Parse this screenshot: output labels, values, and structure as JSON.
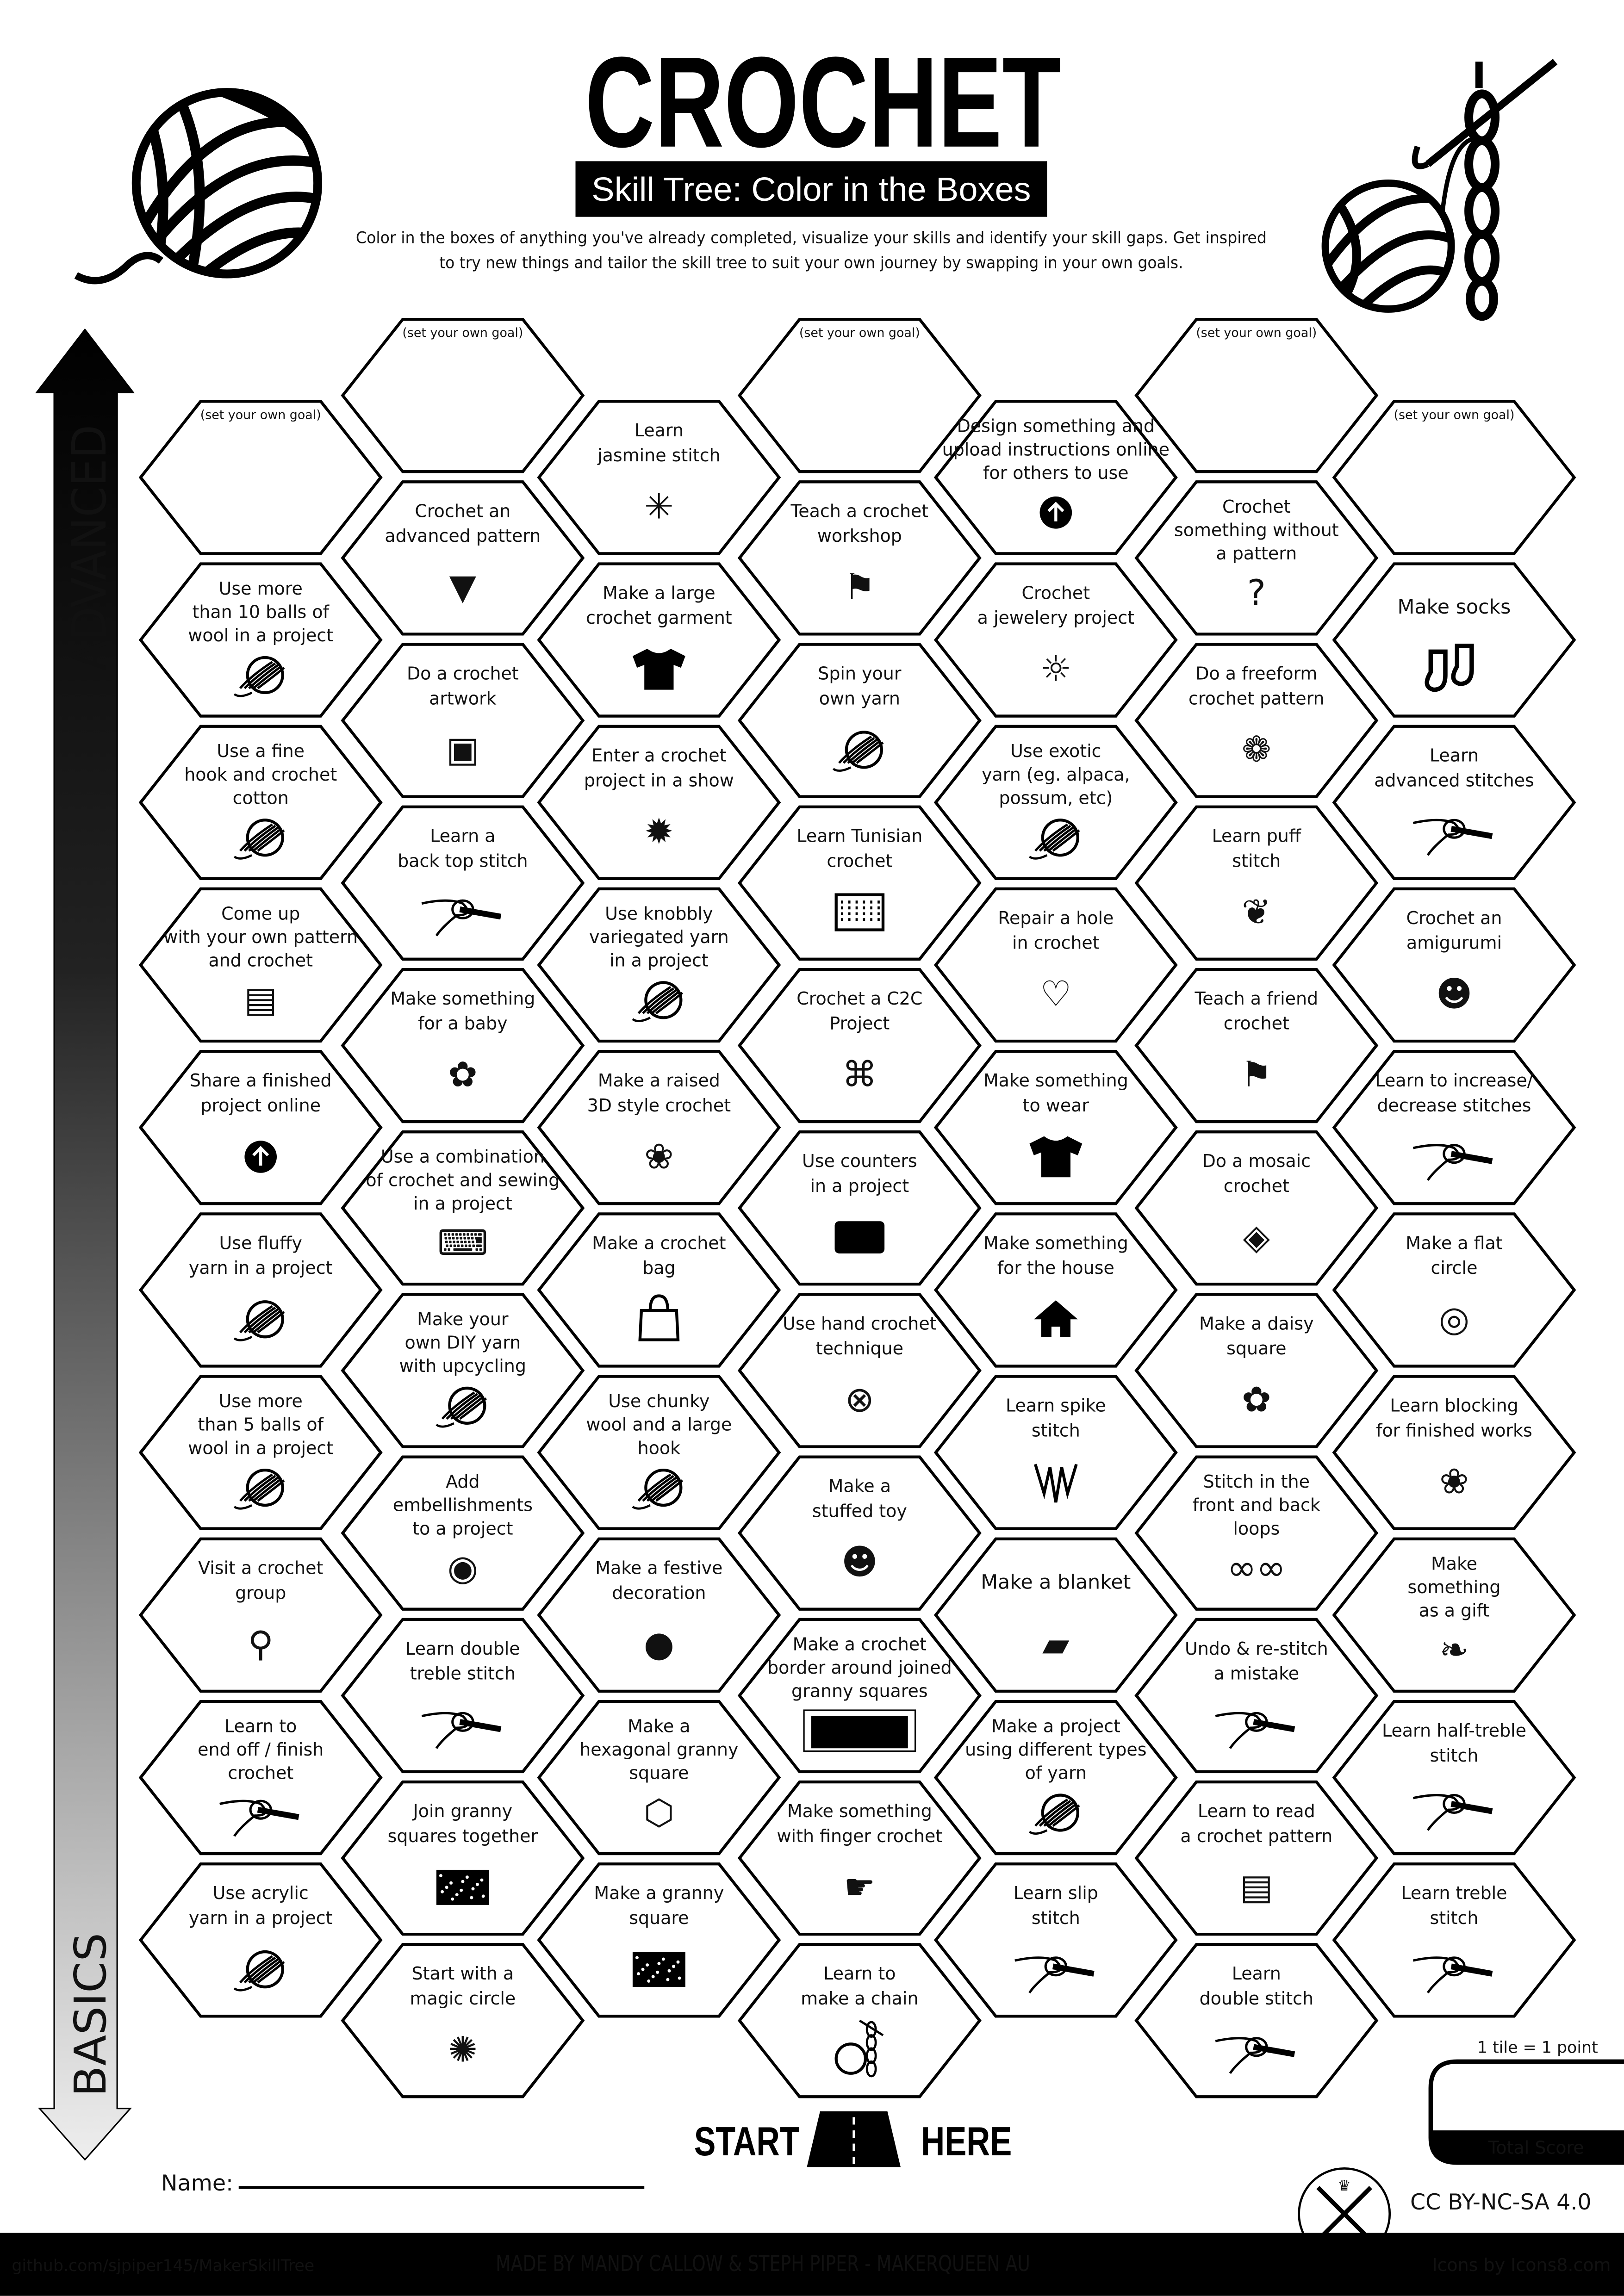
{
  "header": {
    "title": "CROCHET",
    "subtitle": "Skill Tree: Color in the Boxes",
    "intro_line1": "Color in the boxes of anything you've already completed, visualize your skills and identify your skill gaps.  Get inspired",
    "intro_line2": "to try new things and tailor the skill tree to suit your own journey by swapping in your own goals."
  },
  "axis": {
    "top_label": "ADVANCED",
    "bottom_label": "BASICS"
  },
  "columns": [
    {
      "tiles": [
        {
          "goal": true,
          "label": "(set your own goal)"
        },
        {
          "lines": [
            "Use more",
            "than 10 balls of",
            "wool in a project"
          ],
          "icon": "yarn-ball"
        },
        {
          "lines": [
            "Use a fine",
            "hook and crochet",
            "cotton"
          ],
          "icon": "yarn-ball"
        },
        {
          "lines": [
            "Come up",
            "with your own pattern",
            "and crochet"
          ],
          "icon": "blueprint"
        },
        {
          "lines": [
            "Share a finished",
            "project online"
          ],
          "icon": "upload"
        },
        {
          "lines": [
            "Use fluffy",
            "yarn in a project"
          ],
          "icon": "yarn-ball"
        },
        {
          "lines": [
            "Use more",
            "than 5 balls of",
            "wool in a project"
          ],
          "icon": "yarn-ball"
        },
        {
          "lines": [
            "Visit a crochet",
            "group"
          ],
          "icon": "map-pin"
        },
        {
          "lines": [
            "Learn to",
            "end off / finish",
            "crochet"
          ],
          "icon": "crochet-hook"
        },
        {
          "lines": [
            "Use acrylic",
            "yarn in a project"
          ],
          "icon": "yarn-ball"
        }
      ]
    },
    {
      "tiles": [
        {
          "goal": true,
          "label": "(set your own goal)"
        },
        {
          "lines": [
            "Crochet an",
            "advanced pattern"
          ],
          "icon": "shawl"
        },
        {
          "lines": [
            "Do a crochet",
            "artwork"
          ],
          "icon": "easel"
        },
        {
          "lines": [
            "Learn a",
            "back top stitch"
          ],
          "icon": "crochet-hook"
        },
        {
          "lines": [
            "Make something",
            "for a baby"
          ],
          "icon": "onesie"
        },
        {
          "lines": [
            "Use a combination",
            "of crochet and sewing",
            "in a project"
          ],
          "icon": "sewing-machine"
        },
        {
          "lines": [
            "Make your",
            "own DIY yarn",
            "with upcycling"
          ],
          "icon": "yarn-ball"
        },
        {
          "lines": [
            "Add",
            "embellishments",
            "to a project"
          ],
          "icon": "button"
        },
        {
          "lines": [
            "Learn double",
            "treble stitch"
          ],
          "icon": "crochet-hook"
        },
        {
          "lines": [
            "Join granny",
            "squares together"
          ],
          "icon": "granny-square"
        },
        {
          "lines": [
            "Start with a",
            "magic circle"
          ],
          "icon": "magic-circle"
        }
      ]
    },
    {
      "tiles": [
        {
          "lines": [
            "Learn",
            "jasmine stitch"
          ],
          "icon": "jasmine-star"
        },
        {
          "lines": [
            "Make a large",
            "crochet garment"
          ],
          "icon": "tshirt"
        },
        {
          "lines": [
            "Enter a crochet",
            "project in a show"
          ],
          "icon": "rosette"
        },
        {
          "lines": [
            "Use knobbly",
            "variegated yarn",
            "in a project"
          ],
          "icon": "yarn-ball"
        },
        {
          "lines": [
            "Make a raised",
            "3D style crochet"
          ],
          "icon": "raised-flower"
        },
        {
          "lines": [
            "Make a crochet",
            "bag"
          ],
          "icon": "bag"
        },
        {
          "lines": [
            "Use chunky",
            "wool and a large",
            "hook"
          ],
          "icon": "yarn-ball"
        },
        {
          "lines": [
            "Make a festive",
            "decoration"
          ],
          "icon": "ornament"
        },
        {
          "lines": [
            "Make a",
            "hexagonal granny",
            "square"
          ],
          "icon": "hexagon"
        },
        {
          "lines": [
            "Make a granny",
            "square"
          ],
          "icon": "granny-square"
        }
      ]
    },
    {
      "tiles": [
        {
          "goal": true,
          "label": "(set your own goal)"
        },
        {
          "lines": [
            "Teach a crochet",
            "workshop"
          ],
          "icon": "teacher"
        },
        {
          "lines": [
            "Spin your",
            "own yarn"
          ],
          "icon": "yarn-ball"
        },
        {
          "lines": [
            "Learn Tunisian",
            "crochet"
          ],
          "icon": "tunisian-grid"
        },
        {
          "lines": [
            "Crochet a C2C",
            "Project"
          ],
          "icon": "c2c"
        },
        {
          "lines": [
            "Use counters",
            "in a project"
          ],
          "icon": "counter"
        },
        {
          "lines": [
            "Use hand crochet",
            "technique"
          ],
          "icon": "x-circle"
        },
        {
          "lines": [
            "Make a",
            "stuffed toy"
          ],
          "icon": "teddy-bear"
        },
        {
          "lines": [
            "Make a crochet",
            "border around joined",
            "granny squares"
          ],
          "icon": "border"
        },
        {
          "lines": [
            "Make something",
            "with finger crochet"
          ],
          "icon": "pointing-hand"
        },
        {
          "lines": [
            "Learn to",
            "make a chain"
          ],
          "icon": "chain-yarn"
        }
      ]
    },
    {
      "tiles": [
        {
          "lines": [
            "Design something and",
            "upload instructions online",
            "for others to use"
          ],
          "icon": "upload"
        },
        {
          "lines": [
            "Crochet",
            "a jewelery project"
          ],
          "icon": "sun-jewelry"
        },
        {
          "lines": [
            "Use exotic",
            "yarn (eg. alpaca,",
            "possum, etc)"
          ],
          "icon": "yarn-ball"
        },
        {
          "lines": [
            "Repair a hole",
            "in crochet"
          ],
          "icon": "broken-heart"
        },
        {
          "lines": [
            "Make something",
            "to wear"
          ],
          "icon": "tshirt"
        },
        {
          "lines": [
            "Make something",
            "for the house"
          ],
          "icon": "house"
        },
        {
          "lines": [
            "Learn spike",
            "stitch"
          ],
          "icon": "spikes"
        },
        {
          "lines": [
            "Make a blanket"
          ],
          "icon": "blanket"
        },
        {
          "lines": [
            "Make a project",
            "using different types",
            "of yarn"
          ],
          "icon": "yarn-ball"
        },
        {
          "lines": [
            "Learn slip",
            "stitch"
          ],
          "icon": "crochet-hook"
        }
      ]
    },
    {
      "tiles": [
        {
          "goal": true,
          "label": "(set your own goal)"
        },
        {
          "lines": [
            "Crochet",
            "something without",
            "a pattern"
          ],
          "icon": "question"
        },
        {
          "lines": [
            "Do a freeform",
            "crochet pattern"
          ],
          "icon": "rose"
        },
        {
          "lines": [
            "Learn puff",
            "stitch"
          ],
          "icon": "puff"
        },
        {
          "lines": [
            "Teach a friend",
            "crochet"
          ],
          "icon": "teacher"
        },
        {
          "lines": [
            "Do a mosaic",
            "crochet"
          ],
          "icon": "mosaic"
        },
        {
          "lines": [
            "Make a daisy",
            "square"
          ],
          "icon": "daisy-square"
        },
        {
          "lines": [
            "Stitch in the",
            "front and back",
            "loops"
          ],
          "icon": "loops"
        },
        {
          "lines": [
            "Undo & re-stitch",
            "a mistake"
          ],
          "icon": "crochet-hook"
        },
        {
          "lines": [
            "Learn to read",
            "a crochet pattern"
          ],
          "icon": "blueprint"
        },
        {
          "lines": [
            "Learn",
            "double stitch"
          ],
          "icon": "crochet-hook"
        }
      ]
    },
    {
      "tiles": [
        {
          "goal": true,
          "label": "(set your own goal)"
        },
        {
          "lines": [
            "Make socks"
          ],
          "icon": "socks"
        },
        {
          "lines": [
            "Learn",
            "advanced stitches"
          ],
          "icon": "crochet-hook"
        },
        {
          "lines": [
            "Crochet an",
            "amigurumi"
          ],
          "icon": "teddy-bear"
        },
        {
          "lines": [
            "Learn to increase/",
            "decrease stitches"
          ],
          "icon": "crochet-hook"
        },
        {
          "lines": [
            "Make a flat",
            "circle"
          ],
          "icon": "flat-circle"
        },
        {
          "lines": [
            "Learn blocking",
            "for finished works"
          ],
          "icon": "blocking"
        },
        {
          "lines": [
            "Make",
            "something",
            "as a gift"
          ],
          "icon": "gift-bow"
        },
        {
          "lines": [
            "Learn half-treble",
            "stitch"
          ],
          "icon": "crochet-hook"
        },
        {
          "lines": [
            "Learn treble",
            "stitch"
          ],
          "icon": "crochet-hook"
        }
      ]
    }
  ],
  "start": {
    "left": "START",
    "right": "HERE"
  },
  "name_label": "Name:",
  "score": {
    "rule": "1 tile = 1 point",
    "label": "Total Score"
  },
  "license": "CC BY-NC-SA 4.0",
  "footer": {
    "repo": "github.com/sjpiper145/MakerSkillTree",
    "credit": "MADE BY MANDY CALLOW & STEPH PIPER  -  MAKERQUEEN AU",
    "icons": "Icons by Icons8.com"
  },
  "colors": {
    "ink": "#000000",
    "paper": "#ffffff",
    "arrow_bottom": "#e0e0e0"
  }
}
